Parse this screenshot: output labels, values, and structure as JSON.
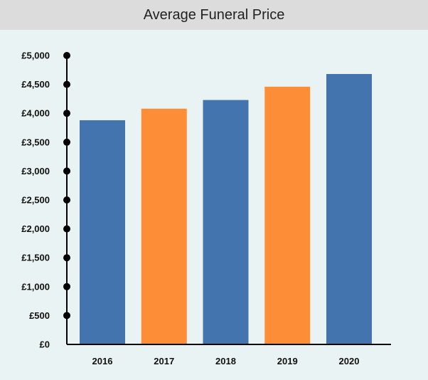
{
  "colors": {
    "blue": "#4374ad",
    "orange": "#fe8d38",
    "axis": "#000000"
  },
  "chart_data": {
    "type": "bar",
    "title": "Average Funeral Price",
    "categories": [
      "2016",
      "2017",
      "2018",
      "2019",
      "2020"
    ],
    "values": [
      3880,
      4080,
      4230,
      4460,
      4680
    ],
    "bar_colors": [
      "blue",
      "orange",
      "blue",
      "orange",
      "blue"
    ],
    "y_ticks": [
      0,
      500,
      1000,
      1500,
      2000,
      2500,
      3000,
      3500,
      4000,
      4500,
      5000
    ],
    "y_tick_labels": [
      "£0",
      "£500",
      "£1,000",
      "£1,500",
      "£2,000",
      "£2,500",
      "£3,000",
      "£3,500",
      "£4,000",
      "£4,500",
      "£5,000"
    ],
    "ylim": [
      0,
      5000
    ],
    "xlabel": "",
    "ylabel": "",
    "grid": false,
    "legend": "none"
  }
}
